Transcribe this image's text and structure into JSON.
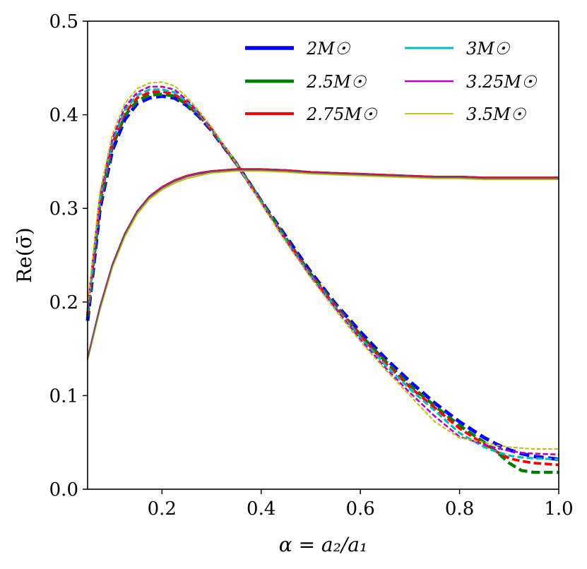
{
  "chart_data": {
    "type": "line",
    "title": "",
    "xlabel": "α = a₂/a₁",
    "ylabel": "Re(σ̄)",
    "xlim": [
      0.05,
      1.0
    ],
    "ylim": [
      0.0,
      0.5
    ],
    "xticks": [
      0.2,
      0.4,
      0.6,
      0.8,
      1.0
    ],
    "xtick_labels": [
      "0.2",
      "0.4",
      "0.6",
      "0.8",
      "1.0"
    ],
    "yticks": [
      0.0,
      0.1,
      0.2,
      0.3,
      0.4,
      0.5
    ],
    "ytick_labels": [
      "0.0",
      "0.1",
      "0.2",
      "0.3",
      "0.4",
      "0.5"
    ],
    "grid": false,
    "legend_position": "top-right",
    "legend_columns": 2,
    "x": [
      0.05,
      0.075,
      0.1,
      0.125,
      0.15,
      0.175,
      0.2,
      0.225,
      0.25,
      0.275,
      0.3,
      0.35,
      0.4,
      0.45,
      0.5,
      0.55,
      0.6,
      0.65,
      0.7,
      0.75,
      0.8,
      0.85,
      0.875,
      0.9,
      0.925,
      0.95,
      1.0
    ],
    "series": [
      {
        "name": "2M☉",
        "color": "#0000ff",
        "solid": [
          0.14,
          0.195,
          0.24,
          0.273,
          0.297,
          0.313,
          0.323,
          0.33,
          0.335,
          0.338,
          0.34,
          0.342,
          0.342,
          0.341,
          0.339,
          0.338,
          0.337,
          0.336,
          0.335,
          0.334,
          0.334,
          0.333,
          0.333,
          0.333,
          0.333,
          0.333,
          0.333
        ],
        "dashed": [
          0.18,
          0.3,
          0.362,
          0.395,
          0.412,
          0.418,
          0.42,
          0.418,
          0.41,
          0.398,
          0.383,
          0.348,
          0.308,
          0.27,
          0.232,
          0.198,
          0.168,
          0.14,
          0.115,
          0.092,
          0.072,
          0.055,
          0.048,
          0.042,
          0.038,
          0.035,
          0.032
        ]
      },
      {
        "name": "2.5M☉",
        "color": "#008000",
        "solid": [
          0.14,
          0.195,
          0.24,
          0.273,
          0.297,
          0.313,
          0.323,
          0.33,
          0.335,
          0.338,
          0.34,
          0.342,
          0.342,
          0.341,
          0.339,
          0.338,
          0.337,
          0.336,
          0.335,
          0.334,
          0.334,
          0.333,
          0.333,
          0.333,
          0.333,
          0.333,
          0.333
        ],
        "dashed": [
          0.185,
          0.305,
          0.366,
          0.399,
          0.415,
          0.421,
          0.422,
          0.42,
          0.411,
          0.399,
          0.384,
          0.348,
          0.308,
          0.268,
          0.23,
          0.196,
          0.165,
          0.137,
          0.111,
          0.089,
          0.068,
          0.05,
          0.04,
          0.028,
          0.02,
          0.018,
          0.018
        ]
      },
      {
        "name": "2.75M☉",
        "color": "#ff0000",
        "solid": [
          0.14,
          0.195,
          0.24,
          0.273,
          0.297,
          0.313,
          0.323,
          0.33,
          0.335,
          0.338,
          0.34,
          0.342,
          0.342,
          0.341,
          0.339,
          0.338,
          0.337,
          0.336,
          0.335,
          0.334,
          0.334,
          0.333,
          0.333,
          0.333,
          0.333,
          0.333,
          0.333
        ],
        "dashed": [
          0.188,
          0.308,
          0.369,
          0.402,
          0.418,
          0.424,
          0.425,
          0.422,
          0.413,
          0.4,
          0.384,
          0.348,
          0.307,
          0.267,
          0.229,
          0.195,
          0.164,
          0.135,
          0.109,
          0.087,
          0.065,
          0.048,
          0.04,
          0.033,
          0.03,
          0.028,
          0.026
        ]
      },
      {
        "name": "3M☉",
        "color": "#00bfbf",
        "solid": [
          0.139,
          0.194,
          0.239,
          0.272,
          0.296,
          0.312,
          0.322,
          0.329,
          0.334,
          0.337,
          0.339,
          0.341,
          0.341,
          0.34,
          0.338,
          0.337,
          0.336,
          0.335,
          0.334,
          0.333,
          0.333,
          0.332,
          0.332,
          0.332,
          0.332,
          0.332,
          0.332
        ],
        "dashed": [
          0.19,
          0.311,
          0.372,
          0.405,
          0.421,
          0.427,
          0.427,
          0.424,
          0.414,
          0.401,
          0.385,
          0.348,
          0.307,
          0.266,
          0.228,
          0.194,
          0.162,
          0.133,
          0.107,
          0.084,
          0.06,
          0.045,
          0.04,
          0.036,
          0.034,
          0.033,
          0.032
        ]
      },
      {
        "name": "3.25M☉",
        "color": "#bf00bf",
        "solid": [
          0.139,
          0.194,
          0.239,
          0.272,
          0.296,
          0.312,
          0.322,
          0.329,
          0.334,
          0.337,
          0.339,
          0.341,
          0.341,
          0.34,
          0.338,
          0.337,
          0.336,
          0.335,
          0.334,
          0.333,
          0.333,
          0.332,
          0.332,
          0.332,
          0.332,
          0.332,
          0.332
        ],
        "dashed": [
          0.193,
          0.314,
          0.375,
          0.408,
          0.424,
          0.43,
          0.43,
          0.427,
          0.416,
          0.402,
          0.386,
          0.348,
          0.306,
          0.265,
          0.227,
          0.193,
          0.16,
          0.13,
          0.103,
          0.078,
          0.056,
          0.048,
          0.044,
          0.041,
          0.039,
          0.038,
          0.037
        ]
      },
      {
        "name": "3.5M☉",
        "color": "#bfbf00",
        "solid": [
          0.138,
          0.192,
          0.237,
          0.27,
          0.294,
          0.31,
          0.32,
          0.327,
          0.332,
          0.335,
          0.338,
          0.34,
          0.34,
          0.339,
          0.337,
          0.336,
          0.335,
          0.334,
          0.333,
          0.332,
          0.332,
          0.331,
          0.331,
          0.331,
          0.331,
          0.331,
          0.331
        ],
        "dashed": [
          0.196,
          0.318,
          0.379,
          0.412,
          0.428,
          0.434,
          0.435,
          0.431,
          0.419,
          0.404,
          0.387,
          0.348,
          0.305,
          0.264,
          0.226,
          0.191,
          0.158,
          0.128,
          0.1,
          0.072,
          0.055,
          0.05,
          0.047,
          0.045,
          0.044,
          0.043,
          0.043
        ]
      }
    ]
  }
}
